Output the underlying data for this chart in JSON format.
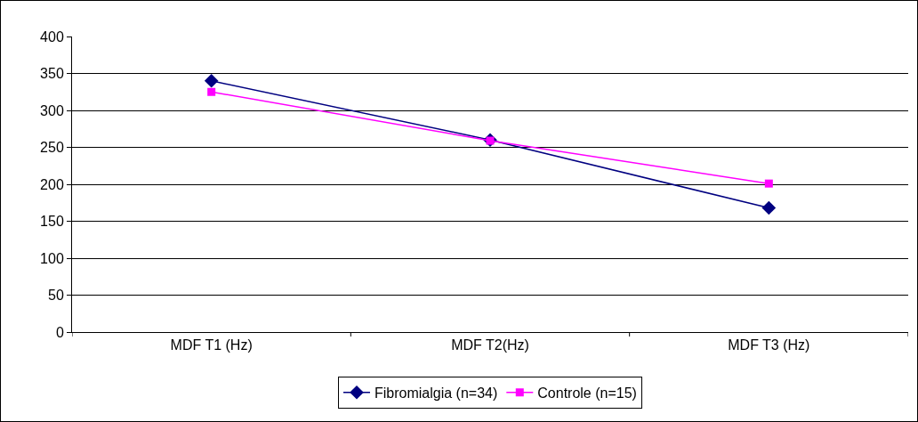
{
  "chart_data": {
    "type": "line",
    "categories": [
      "MDF T1 (Hz)",
      "MDF T2(Hz)",
      "MDF T3 (Hz)"
    ],
    "series": [
      {
        "name": "Fibromialgia (n=34)",
        "color": "#000080",
        "values": [
          340,
          260,
          168
        ],
        "marker": "diamond"
      },
      {
        "name": "Controle (n=15)",
        "color": "#ff00ff",
        "values": [
          325,
          259,
          201
        ],
        "marker": "square"
      }
    ],
    "ylim": [
      0,
      400
    ],
    "yticks": [
      0,
      50,
      100,
      150,
      200,
      250,
      300,
      350,
      400
    ],
    "grid": "y",
    "legend": "bottom",
    "line_style": "solid"
  }
}
